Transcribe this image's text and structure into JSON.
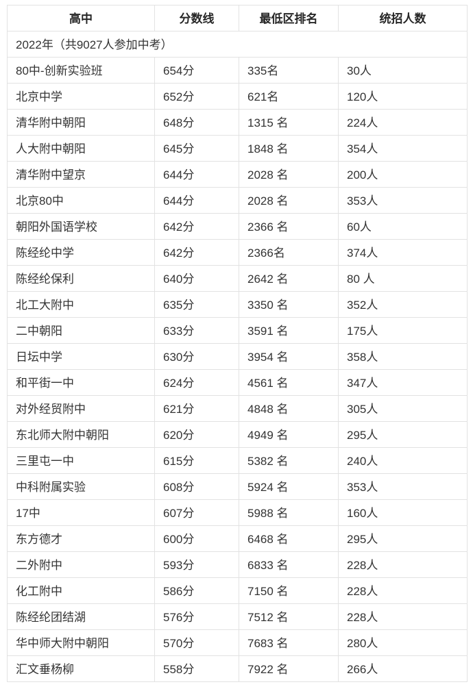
{
  "table": {
    "headers": [
      "高中",
      "分数线",
      "最低区排名",
      "统招人数"
    ],
    "year_note": "2022年（共9027人参加中考）",
    "rows": [
      {
        "school": "80中-创新实验班",
        "score": "654分",
        "rank": "335名",
        "quota": "30人"
      },
      {
        "school": "北京中学",
        "score": "652分",
        "rank": "621名",
        "quota": "120人"
      },
      {
        "school": "清华附中朝阳",
        "score": "648分",
        "rank": "1315 名",
        "quota": "224人"
      },
      {
        "school": "人大附中朝阳",
        "score": "645分",
        "rank": "1848 名",
        "quota": "354人"
      },
      {
        "school": "清华附中望京",
        "score": "644分",
        "rank": "2028 名",
        "quota": "200人"
      },
      {
        "school": "北京80中",
        "score": "644分",
        "rank": "2028 名",
        "quota": "353人"
      },
      {
        "school": "朝阳外国语学校",
        "score": "642分",
        "rank": "2366 名",
        "quota": "60人"
      },
      {
        "school": "陈经纶中学",
        "score": "642分",
        "rank": "2366名",
        "quota": "374人"
      },
      {
        "school": "陈经纶保利",
        "score": "640分",
        "rank": "2642 名",
        "quota": "80 人"
      },
      {
        "school": "北工大附中",
        "score": "635分",
        "rank": "3350 名",
        "quota": "352人"
      },
      {
        "school": "二中朝阳",
        "score": "633分",
        "rank": "3591 名",
        "quota": "175人"
      },
      {
        "school": "日坛中学",
        "score": "630分",
        "rank": "3954 名",
        "quota": "358人"
      },
      {
        "school": "和平街一中",
        "score": "624分",
        "rank": "4561 名",
        "quota": "347人"
      },
      {
        "school": "对外经贸附中",
        "score": "621分",
        "rank": "4848 名",
        "quota": "305人"
      },
      {
        "school": "东北师大附中朝阳",
        "score": "620分",
        "rank": "4949 名",
        "quota": "295人"
      },
      {
        "school": "三里屯一中",
        "score": "615分",
        "rank": "5382 名",
        "quota": "240人"
      },
      {
        "school": "中科附属实验",
        "score": "608分",
        "rank": "5924 名",
        "quota": "353人"
      },
      {
        "school": "17中",
        "score": "607分",
        "rank": "5988 名",
        "quota": "160人"
      },
      {
        "school": "东方德才",
        "score": "600分",
        "rank": "6468 名",
        "quota": "295人"
      },
      {
        "school": "二外附中",
        "score": "593分",
        "rank": "6833 名",
        "quota": "228人"
      },
      {
        "school": "化工附中",
        "score": "586分",
        "rank": "7150 名",
        "quota": "228人"
      },
      {
        "school": "陈经纶团结湖",
        "score": "576分",
        "rank": "7512 名",
        "quota": "228人"
      },
      {
        "school": "华中师大附中朝阳",
        "score": "570分",
        "rank": "7683 名",
        "quota": "280人"
      },
      {
        "school": "汇文垂杨柳",
        "score": "558分",
        "rank": "7922 名",
        "quota": "266人"
      }
    ]
  },
  "colors": {
    "border": "#e2e2e2",
    "body_text": "#333333",
    "header_text": "#262626",
    "background": "#ffffff"
  }
}
